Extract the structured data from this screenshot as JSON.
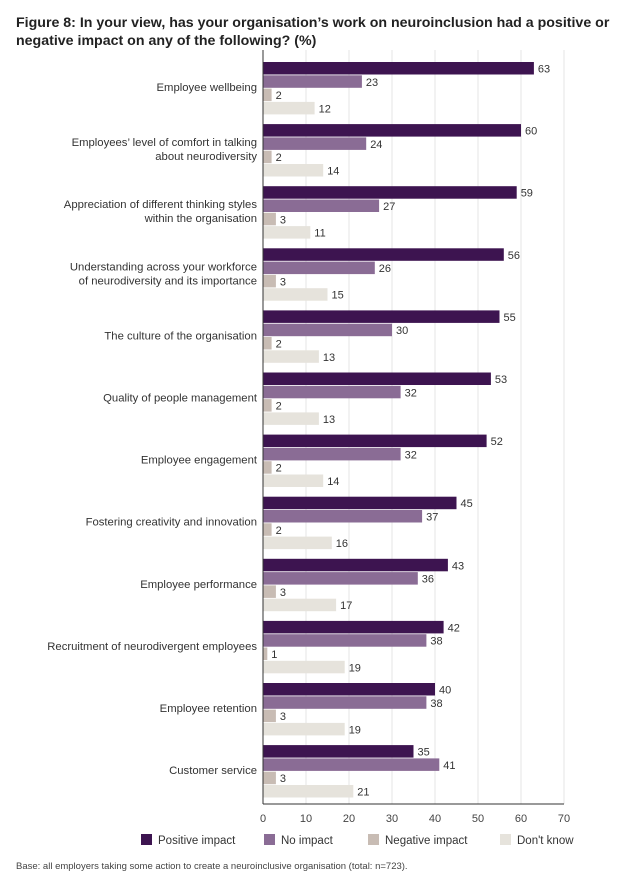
{
  "chart_data": {
    "type": "bar",
    "orientation": "horizontal",
    "title": "Figure 8: In your view, has your organisation’s work on neuroinclusion had a positive or negative impact on any of the following? (%)",
    "categories": [
      "Employee wellbeing",
      "Employees’ level of comfort in talking\nabout neurodiversity",
      "Appreciation of different thinking styles\nwithin the organisation",
      "Understanding across your workforce\nof neurodiversity and its importance",
      "The culture of the organisation",
      "Quality of people management",
      "Employee engagement",
      "Fostering creativity and innovation",
      "Employee performance",
      "Recruitment of neurodivergent employees",
      "Employee retention",
      "Customer service"
    ],
    "series": [
      {
        "name": "Positive impact",
        "color": "#3d1450",
        "values": [
          63,
          60,
          59,
          56,
          55,
          53,
          52,
          45,
          43,
          42,
          40,
          35
        ]
      },
      {
        "name": "No impact",
        "color": "#8a6c95",
        "values": [
          23,
          24,
          27,
          26,
          30,
          32,
          32,
          37,
          36,
          38,
          38,
          41
        ]
      },
      {
        "name": "Negative impact",
        "color": "#c8bcb4",
        "values": [
          2,
          2,
          3,
          3,
          2,
          2,
          2,
          2,
          3,
          1,
          3,
          3
        ]
      },
      {
        "name": "Don't know",
        "color": "#e6e3dc",
        "values": [
          12,
          14,
          11,
          15,
          13,
          13,
          14,
          16,
          17,
          19,
          19,
          21
        ]
      }
    ],
    "xlim": [
      0,
      70
    ],
    "xticks": [
      0,
      10,
      20,
      30,
      40,
      50,
      60,
      70
    ],
    "grid": true,
    "legend_position": "bottom",
    "data_labels": true
  },
  "footnote": "Base: all employers taking some action to create a neuroinclusive organisation (total: n=723)."
}
